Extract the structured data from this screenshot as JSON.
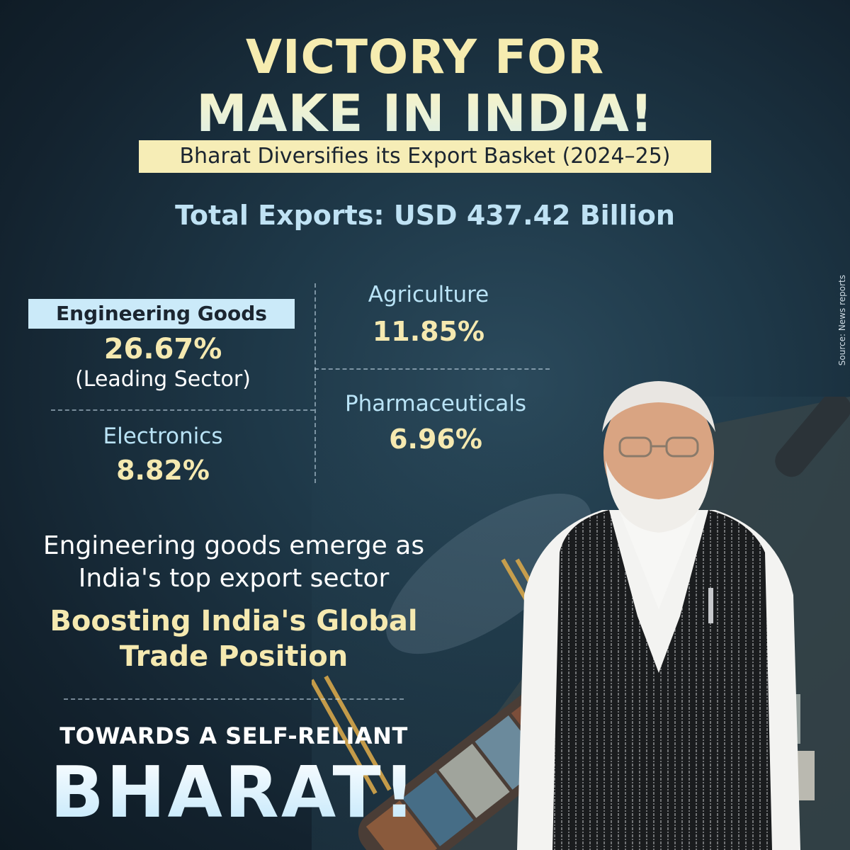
{
  "header": {
    "title_line1": "VICTORY FOR",
    "title_line2": "MAKE IN INDIA!",
    "subtitle": "Bharat Diversifies its Export Basket (2024–25)",
    "total_exports": "Total Exports: USD 437.42 Billion"
  },
  "sectors": {
    "engineering": {
      "name": "Engineering Goods",
      "share": "26.67%",
      "note": "(Leading Sector)"
    },
    "agriculture": {
      "name": "Agriculture",
      "share": "11.85%"
    },
    "pharmaceuticals": {
      "name": "Pharmaceuticals",
      "share": "6.96%"
    },
    "electronics": {
      "name": "Electronics",
      "share": "8.82%"
    }
  },
  "statement": {
    "line1": "Engineering goods emerge as",
    "line2": "India's top export sector",
    "highlight_line1": "Boosting India's Global",
    "highlight_line2": "Trade Position"
  },
  "footer": {
    "towards": "TOWARDS A SELF-RELIANT",
    "bharat": "BHARAT!"
  },
  "source": "Source: News reports",
  "colors": {
    "background": "#1a2f3d",
    "cream": "#f5e9b0",
    "light_blue": "#b9e3f6"
  }
}
